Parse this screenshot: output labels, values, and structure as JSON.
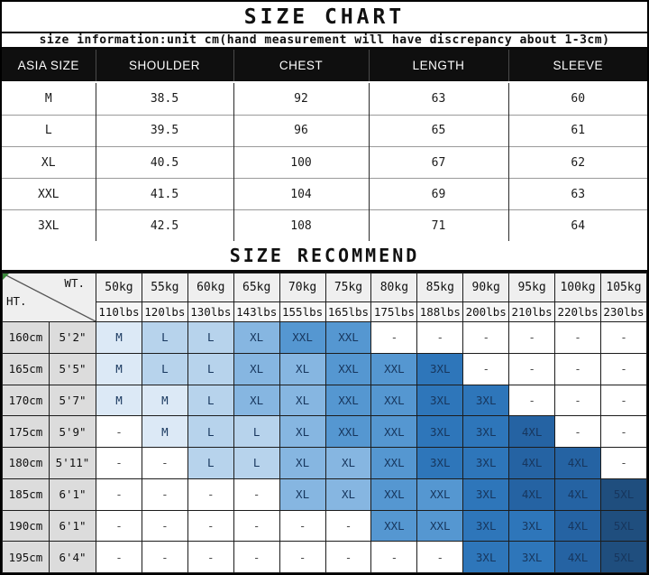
{
  "chart_data": [
    {
      "type": "table",
      "title": "SIZE CHART",
      "subtitle": "size information:unit cm(hand measurement will have discrepancy about 1-3cm)",
      "columns": [
        "ASIA SIZE",
        "SHOULDER",
        "CHEST",
        "LENGTH",
        "SLEEVE"
      ],
      "rows": [
        [
          "M",
          "38.5",
          "92",
          "63",
          "60"
        ],
        [
          "L",
          "39.5",
          "96",
          "65",
          "61"
        ],
        [
          "XL",
          "40.5",
          "100",
          "67",
          "62"
        ],
        [
          "XXL",
          "41.5",
          "104",
          "69",
          "63"
        ],
        [
          "3XL",
          "42.5",
          "108",
          "71",
          "64"
        ]
      ]
    },
    {
      "type": "table",
      "title": "SIZE RECOMMEND",
      "corner_top": "WT.",
      "corner_bottom": "HT.",
      "weights_kg": [
        "50kg",
        "55kg",
        "60kg",
        "65kg",
        "70kg",
        "75kg",
        "80kg",
        "85kg",
        "90kg",
        "95kg",
        "100kg",
        "105kg"
      ],
      "weights_lbs": [
        "110lbs",
        "120lbs",
        "130lbs",
        "143lbs",
        "155lbs",
        "165lbs",
        "175lbs",
        "188lbs",
        "200lbs",
        "210lbs",
        "220lbs",
        "230lbs"
      ],
      "height_rows": [
        {
          "cm": "160cm",
          "ft": "5'2\"",
          "sizes": [
            "M",
            "L",
            "L",
            "XL",
            "XXL",
            "XXL",
            "-",
            "-",
            "-",
            "-",
            "-",
            "-"
          ]
        },
        {
          "cm": "165cm",
          "ft": "5'5\"",
          "sizes": [
            "M",
            "L",
            "L",
            "XL",
            "XL",
            "XXL",
            "XXL",
            "3XL",
            "-",
            "-",
            "-",
            "-"
          ]
        },
        {
          "cm": "170cm",
          "ft": "5'7\"",
          "sizes": [
            "M",
            "M",
            "L",
            "XL",
            "XL",
            "XXL",
            "XXL",
            "3XL",
            "3XL",
            "-",
            "-",
            "-"
          ]
        },
        {
          "cm": "175cm",
          "ft": "5'9\"",
          "sizes": [
            "-",
            "M",
            "L",
            "L",
            "XL",
            "XXL",
            "XXL",
            "3XL",
            "3XL",
            "4XL",
            "-",
            "-"
          ]
        },
        {
          "cm": "180cm",
          "ft": "5'11\"",
          "sizes": [
            "-",
            "-",
            "L",
            "L",
            "XL",
            "XL",
            "XXL",
            "3XL",
            "3XL",
            "4XL",
            "4XL",
            "-"
          ]
        },
        {
          "cm": "185cm",
          "ft": "6'1\"",
          "sizes": [
            "-",
            "-",
            "-",
            "-",
            "XL",
            "XL",
            "XXL",
            "XXL",
            "3XL",
            "4XL",
            "4XL",
            "5XL"
          ]
        },
        {
          "cm": "190cm",
          "ft": "6'1\"",
          "sizes": [
            "-",
            "-",
            "-",
            "-",
            "-",
            "-",
            "XXL",
            "XXL",
            "3XL",
            "3XL",
            "4XL",
            "5XL"
          ]
        },
        {
          "cm": "195cm",
          "ft": "6'4\"",
          "sizes": [
            "-",
            "-",
            "-",
            "-",
            "-",
            "-",
            "-",
            "-",
            "3XL",
            "3XL",
            "4XL",
            "5XL"
          ]
        }
      ],
      "size_colors": {
        "M": "#dce9f6",
        "L": "#b7d3ec",
        "XL": "#86b6e1",
        "XXL": "#5597d1",
        "3XL": "#2e76ba",
        "4XL": "#2563a3",
        "5XL": "#1f4e7e"
      },
      "colors": {
        "header_bg": "#0f0f0f",
        "header_text": "#ffffff",
        "corner_bg": "#c9c9c9",
        "height_col_bg": "#dcdcdc",
        "kg_row_bg": "#efefef",
        "lbs_row_bg": "#f7f7f7",
        "cell_text": "#17365d",
        "corner_marker": "#3c8a3c"
      }
    }
  ]
}
